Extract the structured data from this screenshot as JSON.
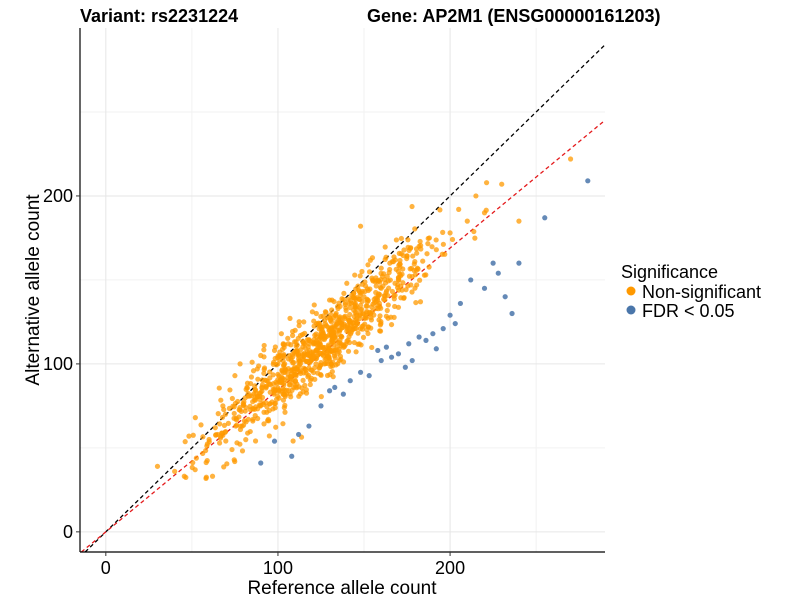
{
  "chart_data": {
    "type": "scatter",
    "title_left": "Variant: rs2231224",
    "title_right": "Gene: AP2M1 (ENSG00000161203)",
    "xlabel": "Reference allele count",
    "ylabel": "Alternative allele count",
    "xlim": [
      -15,
      290
    ],
    "ylim": [
      -12,
      300
    ],
    "x_ticks": [
      0,
      100,
      200
    ],
    "y_ticks": [
      0,
      100,
      200
    ],
    "grid": true,
    "reference_line": {
      "name": "y = x",
      "slope": 1,
      "color": "#000000",
      "style": "dashed"
    },
    "fit_line": {
      "name": "expected ratio",
      "slope": 0.845,
      "color": "#e41a1c",
      "style": "dashed"
    },
    "legend": {
      "title": "Significance",
      "position": "right",
      "entries": [
        {
          "label": "Non-significant",
          "color": "#ff9900"
        },
        {
          "label": "FDR < 0.05",
          "color": "#4a76aa"
        }
      ]
    },
    "series": [
      {
        "name": "Non-significant",
        "color": "#ff9900",
        "approx_count": 900,
        "x_range": [
          30,
          270
        ],
        "y_over_x_mean": 0.86,
        "points": [
          [
            30,
            39
          ],
          [
            40,
            36
          ],
          [
            52,
            68
          ],
          [
            60,
            55
          ],
          [
            65,
            58
          ],
          [
            68,
            75
          ],
          [
            75,
            93
          ],
          [
            78,
            100
          ],
          [
            82,
            86
          ],
          [
            85,
            101
          ],
          [
            88,
            97
          ],
          [
            90,
            105
          ],
          [
            92,
            111
          ],
          [
            95,
            88
          ],
          [
            98,
            108
          ],
          [
            100,
            100
          ],
          [
            102,
            118
          ],
          [
            104,
            95
          ],
          [
            106,
            112
          ],
          [
            110,
            120
          ],
          [
            112,
            106
          ],
          [
            115,
            125
          ],
          [
            118,
            112
          ],
          [
            120,
            131
          ],
          [
            124,
            115
          ],
          [
            126,
            122
          ],
          [
            130,
            138
          ],
          [
            134,
            117
          ],
          [
            136,
            128
          ],
          [
            140,
            148
          ],
          [
            144,
            132
          ],
          [
            146,
            125
          ],
          [
            148,
            182
          ],
          [
            150,
            140
          ],
          [
            155,
            150
          ],
          [
            158,
            135
          ],
          [
            160,
            145
          ],
          [
            165,
            160
          ],
          [
            168,
            148
          ],
          [
            170,
            155
          ],
          [
            175,
            164
          ],
          [
            178,
            152
          ],
          [
            182,
            170
          ],
          [
            188,
            175
          ],
          [
            192,
            168
          ],
          [
            200,
            178
          ],
          [
            205,
            192
          ],
          [
            210,
            185
          ],
          [
            215,
            200
          ],
          [
            220,
            190
          ],
          [
            230,
            207
          ],
          [
            240,
            185
          ],
          [
            270,
            222
          ]
        ]
      },
      {
        "name": "FDR < 0.05",
        "color": "#4a76aa",
        "approx_count": 60,
        "x_range": [
          90,
          280
        ],
        "points": [
          [
            90,
            41
          ],
          [
            98,
            54
          ],
          [
            108,
            45
          ],
          [
            112,
            58
          ],
          [
            118,
            63
          ],
          [
            125,
            75
          ],
          [
            130,
            84
          ],
          [
            133,
            86
          ],
          [
            138,
            82
          ],
          [
            142,
            90
          ],
          [
            148,
            95
          ],
          [
            153,
            93
          ],
          [
            158,
            108
          ],
          [
            160,
            102
          ],
          [
            163,
            110
          ],
          [
            166,
            104
          ],
          [
            170,
            106
          ],
          [
            174,
            98
          ],
          [
            176,
            112
          ],
          [
            178,
            102
          ],
          [
            182,
            116
          ],
          [
            186,
            114
          ],
          [
            190,
            118
          ],
          [
            192,
            109
          ],
          [
            196,
            121
          ],
          [
            200,
            129
          ],
          [
            203,
            124
          ],
          [
            206,
            136
          ],
          [
            212,
            150
          ],
          [
            220,
            145
          ],
          [
            225,
            160
          ],
          [
            228,
            154
          ],
          [
            232,
            140
          ],
          [
            236,
            130
          ],
          [
            240,
            160
          ],
          [
            255,
            187
          ],
          [
            280,
            209
          ]
        ]
      }
    ]
  }
}
